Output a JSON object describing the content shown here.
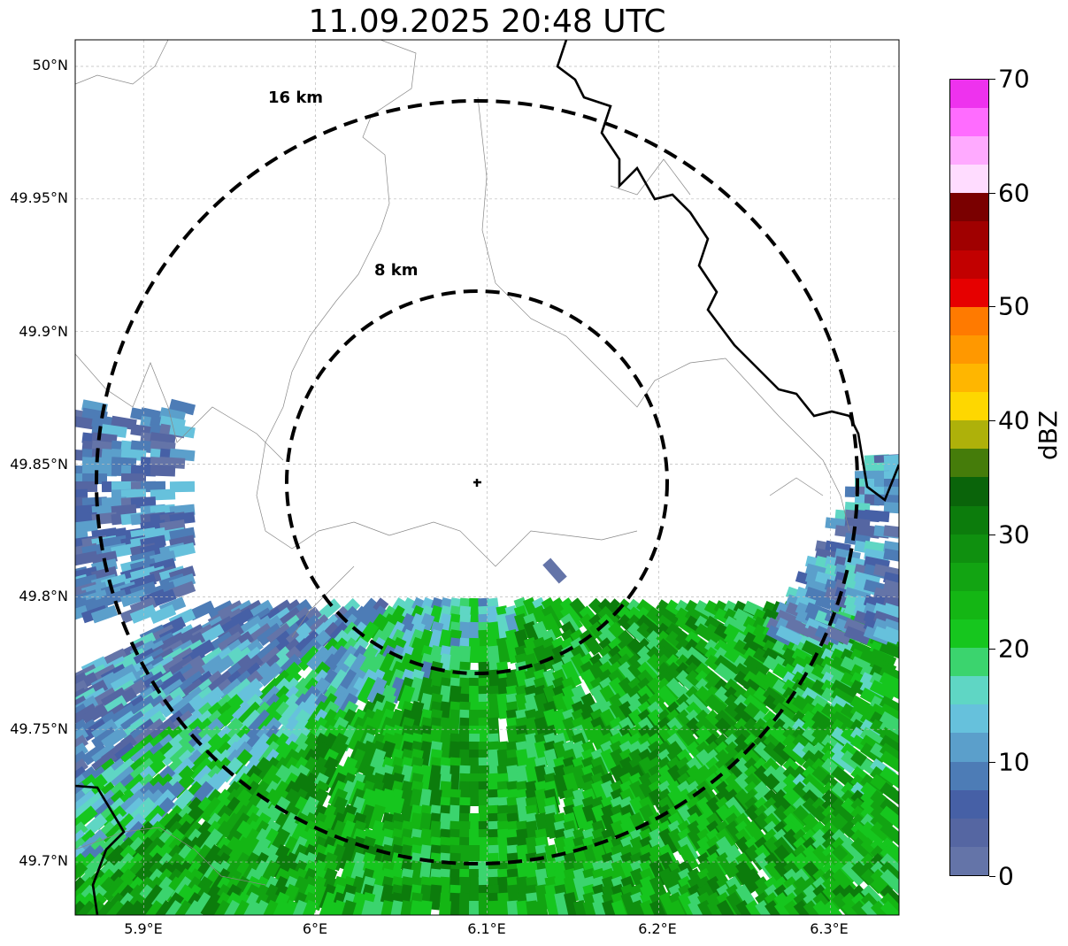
{
  "title": "11.09.2025 20:48 UTC",
  "map": {
    "lat_labels": [
      "50°N",
      "49.95°N",
      "49.9°N",
      "49.85°N",
      "49.8°N",
      "49.75°N",
      "49.7°N"
    ],
    "lon_labels": [
      "5.9°E",
      "6°E",
      "6.1°E",
      "6.2°E",
      "6.3°E"
    ],
    "lat_values": [
      50.0,
      49.95,
      49.9,
      49.85,
      49.8,
      49.75,
      49.7
    ],
    "lon_values": [
      5.9,
      6.0,
      6.1,
      6.2,
      6.3
    ],
    "extent": {
      "lon_min": 5.86,
      "lon_max": 6.34,
      "lat_min": 49.68,
      "lat_max": 50.01
    },
    "radar_site": {
      "lon": 6.095,
      "lat": 49.843
    },
    "range_rings": [
      {
        "label": "8 km",
        "km": 8
      },
      {
        "label": "16 km",
        "km": 16
      }
    ],
    "grid": true
  },
  "colorbar": {
    "label": "dBZ",
    "tick_labels": [
      "0",
      "10",
      "20",
      "30",
      "40",
      "50",
      "60",
      "70"
    ],
    "min": 0,
    "max": 70,
    "step": 2.5,
    "colors": [
      "#6474a8",
      "#5566a2",
      "#4660a6",
      "#4d7cb6",
      "#5b9fcb",
      "#66c1dc",
      "#5fd6c4",
      "#3bd46e",
      "#16c61e",
      "#14b614",
      "#12a412",
      "#0f900f",
      "#0c7c0c",
      "#0a640a",
      "#457c0a",
      "#aeb10a",
      "#fed700",
      "#ffb600",
      "#ff9800",
      "#ff7a00",
      "#e60000",
      "#c20000",
      "#a00000",
      "#7a0000",
      "#ffdcff",
      "#ffaaff",
      "#ff6cff",
      "#ee32ee"
    ]
  }
}
